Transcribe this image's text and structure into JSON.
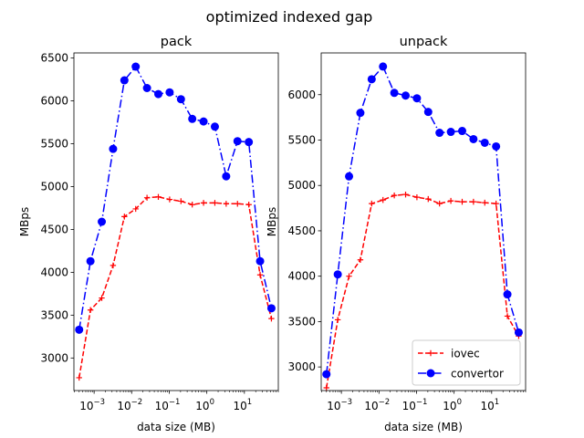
{
  "figure": {
    "suptitle": "optimized indexed gap"
  },
  "chart_data": [
    {
      "type": "line",
      "title": "pack",
      "xlabel": "data size (MB)",
      "ylabel": "MBps",
      "xscale": "log",
      "xlim": [
        0.00029,
        80
      ],
      "ylim": [
        2620,
        6560
      ],
      "xticks": [
        {
          "value": 0.001,
          "label": "10",
          "exp": "−3"
        },
        {
          "value": 0.01,
          "label": "10",
          "exp": "−2"
        },
        {
          "value": 0.1,
          "label": "10",
          "exp": "−1"
        },
        {
          "value": 1,
          "label": "10",
          "exp": "0"
        },
        {
          "value": 10,
          "label": "10",
          "exp": "1"
        }
      ],
      "yticks": [
        3000,
        3500,
        4000,
        4500,
        5000,
        5500,
        6000,
        6500
      ],
      "legend": null,
      "series": [
        {
          "name": "iovec",
          "color": "#ff0000",
          "linestyle": "dashed",
          "marker": "plus",
          "x": [
            0.0004,
            0.0008,
            0.0016,
            0.0032,
            0.0064,
            0.0128,
            0.0256,
            0.0512,
            0.1024,
            0.2048,
            0.4096,
            0.8192,
            1.6384,
            3.2768,
            6.5536,
            13.1072,
            26.2144,
            52.4288
          ],
          "y": [
            2770,
            3560,
            3700,
            4080,
            4650,
            4740,
            4870,
            4880,
            4850,
            4830,
            4790,
            4810,
            4810,
            4800,
            4800,
            4790,
            3970,
            3460
          ]
        },
        {
          "name": "convertor",
          "color": "#0000ff",
          "linestyle": "dashdot",
          "marker": "circle",
          "x": [
            0.0004,
            0.0008,
            0.0016,
            0.0032,
            0.0064,
            0.0128,
            0.0256,
            0.0512,
            0.1024,
            0.2048,
            0.4096,
            0.8192,
            1.6384,
            3.2768,
            6.5536,
            13.1072,
            26.2144,
            52.4288
          ],
          "y": [
            3330,
            4130,
            4590,
            5440,
            6240,
            6400,
            6150,
            6080,
            6100,
            6020,
            5790,
            5760,
            5700,
            5120,
            5530,
            5520,
            4130,
            3580
          ]
        }
      ]
    },
    {
      "type": "line",
      "title": "unpack",
      "xlabel": "data size (MB)",
      "ylabel": "MBps",
      "xscale": "log",
      "xlim": [
        0.00029,
        80
      ],
      "ylim": [
        2740,
        6460
      ],
      "xticks": [
        {
          "value": 0.001,
          "label": "10",
          "exp": "−3"
        },
        {
          "value": 0.01,
          "label": "10",
          "exp": "−2"
        },
        {
          "value": 0.1,
          "label": "10",
          "exp": "−1"
        },
        {
          "value": 1,
          "label": "10",
          "exp": "0"
        },
        {
          "value": 10,
          "label": "10",
          "exp": "1"
        }
      ],
      "yticks": [
        3000,
        3500,
        4000,
        4500,
        5000,
        5500,
        6000
      ],
      "legend": "lower right",
      "series": [
        {
          "name": "iovec",
          "color": "#ff0000",
          "linestyle": "dashed",
          "marker": "plus",
          "x": [
            0.0004,
            0.0008,
            0.0016,
            0.0032,
            0.0064,
            0.0128,
            0.0256,
            0.0512,
            0.1024,
            0.2048,
            0.4096,
            0.8192,
            1.6384,
            3.2768,
            6.5536,
            13.1072,
            26.2144,
            52.4288
          ],
          "y": [
            2770,
            3520,
            4000,
            4180,
            4800,
            4840,
            4890,
            4900,
            4870,
            4850,
            4800,
            4830,
            4820,
            4820,
            4810,
            4800,
            3560,
            3340
          ]
        },
        {
          "name": "convertor",
          "color": "#0000ff",
          "linestyle": "dashdot",
          "marker": "circle",
          "x": [
            0.0004,
            0.0008,
            0.0016,
            0.0032,
            0.0064,
            0.0128,
            0.0256,
            0.0512,
            0.1024,
            0.2048,
            0.4096,
            0.8192,
            1.6384,
            3.2768,
            6.5536,
            13.1072,
            26.2144,
            52.4288
          ],
          "y": [
            2920,
            4020,
            5100,
            5800,
            6170,
            6310,
            6020,
            5990,
            5960,
            5810,
            5580,
            5590,
            5600,
            5510,
            5470,
            5430,
            3800,
            3380
          ]
        }
      ]
    }
  ]
}
